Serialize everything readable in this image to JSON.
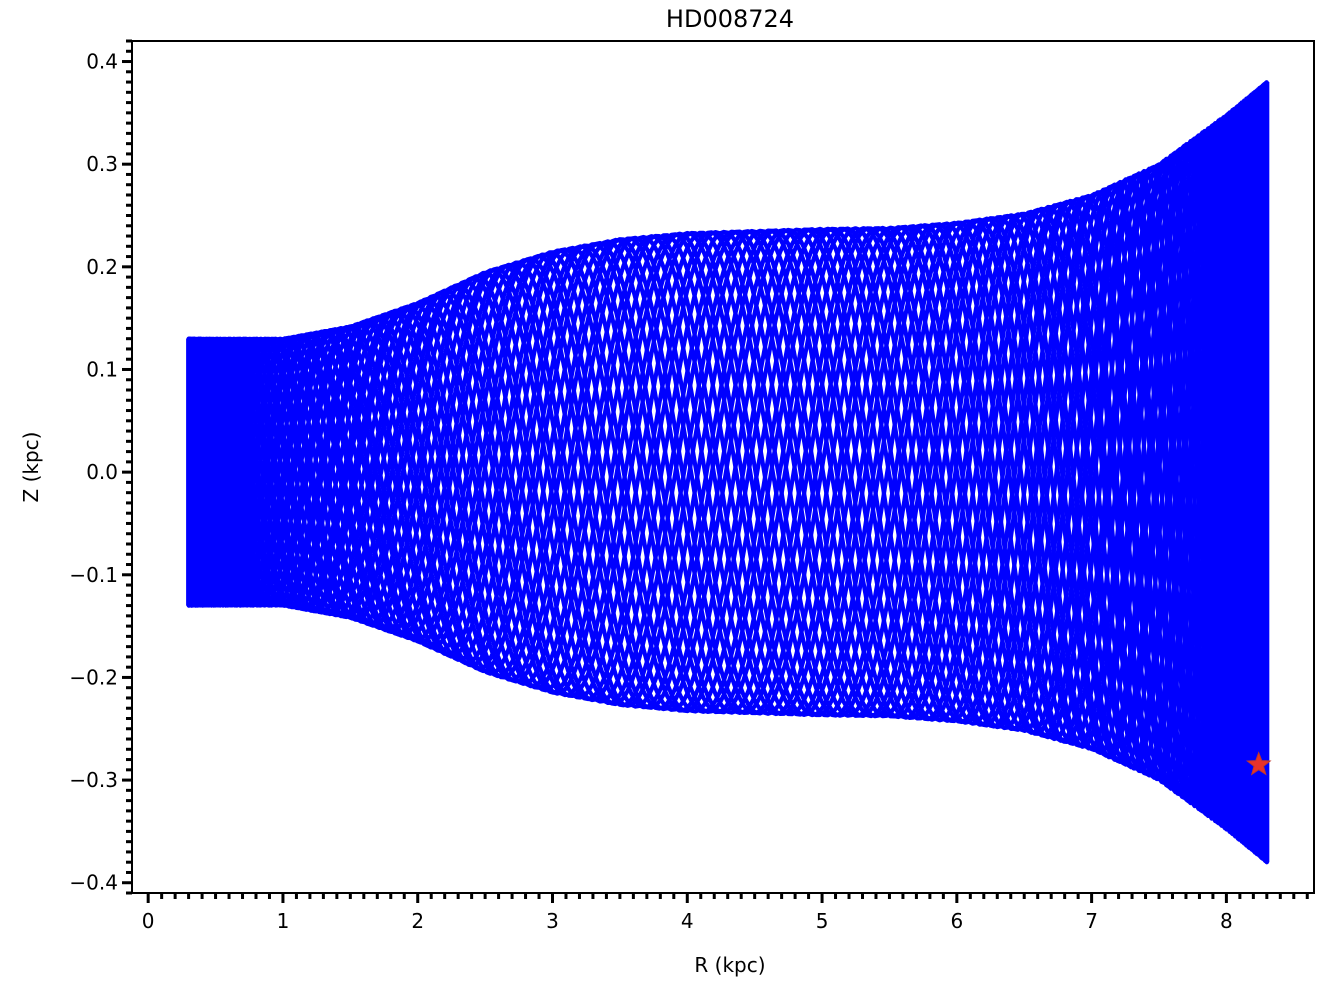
{
  "chart_data": {
    "type": "line",
    "title": "HD008724",
    "xlabel": "R (kpc)",
    "ylabel": "Z (kpc)",
    "xlim": [
      -0.12,
      8.65
    ],
    "ylim": [
      -0.41,
      0.42
    ],
    "x_ticks": [
      0,
      1,
      2,
      3,
      4,
      5,
      6,
      7,
      8
    ],
    "x_tick_labels": [
      "0",
      "1",
      "2",
      "3",
      "4",
      "5",
      "6",
      "7",
      "8"
    ],
    "y_ticks": [
      0.4,
      0.3,
      0.2,
      0.1,
      0.0,
      -0.1,
      -0.2,
      -0.3,
      -0.4
    ],
    "y_tick_labels": [
      "0.4",
      "0.3",
      "0.2",
      "0.1",
      "0.0",
      "−0.1",
      "−0.2",
      "−0.3",
      "−0.4"
    ],
    "grid": false,
    "orbit": {
      "name": "orbit",
      "color": "#0000ff",
      "r_min": 0.3,
      "r_max": 8.3,
      "envelope_r": [
        0.3,
        1.0,
        1.5,
        2.0,
        2.5,
        3.0,
        3.5,
        4.0,
        4.5,
        5.0,
        5.5,
        6.0,
        6.5,
        7.0,
        7.5,
        8.0,
        8.3
      ],
      "envelope_z": [
        0.13,
        0.13,
        0.142,
        0.165,
        0.195,
        0.215,
        0.227,
        0.233,
        0.235,
        0.237,
        0.238,
        0.243,
        0.252,
        0.27,
        0.3,
        0.348,
        0.38
      ]
    },
    "current_position": {
      "name": "current position",
      "r": 8.24,
      "z": -0.285,
      "color": "#e8322b",
      "marker": "star"
    }
  }
}
